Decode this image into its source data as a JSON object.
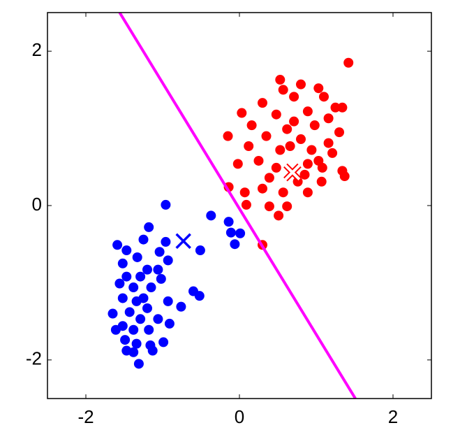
{
  "chart_data": {
    "type": "scatter",
    "xlim": [
      -2.5,
      2.5
    ],
    "ylim": [
      -2.5,
      2.5
    ],
    "xticks": [
      -2,
      0,
      2
    ],
    "yticks": [
      -2,
      0,
      2
    ],
    "series": [
      {
        "color": "#0000ff",
        "marker": "dot",
        "x": [
          -0.96,
          -1.18,
          -0.37,
          -0.14,
          -0.11,
          0.01,
          -0.06,
          -0.51,
          -1.25,
          -0.96,
          -1.59,
          -1.47,
          -1.33,
          -1.04,
          -0.93,
          -1.52,
          -1.2,
          -1.06,
          -1.47,
          -1.29,
          -1.02,
          -1.56,
          -1.38,
          -1.15,
          -0.6,
          -0.52,
          -0.93,
          -1.52,
          -1.34,
          -1.2,
          -0.76,
          -1.65,
          -1.43,
          -1.29,
          -1.06,
          -0.91,
          -1.52,
          -1.38,
          -1.18,
          -1.49,
          -1.34,
          -1.16,
          -0.99,
          -1.47,
          -1.38,
          -1.31,
          -1.13,
          -1.61,
          -1.25
        ],
        "y": [
          0.01,
          -0.28,
          -0.13,
          -0.21,
          -0.35,
          -0.36,
          -0.5,
          -0.58,
          -0.44,
          -0.47,
          -0.51,
          -0.58,
          -0.67,
          -0.6,
          -0.71,
          -0.75,
          -0.83,
          -0.83,
          -0.92,
          -0.92,
          -0.95,
          -1.01,
          -1.06,
          -1.06,
          -1.11,
          -1.17,
          -1.24,
          -1.2,
          -1.24,
          -1.33,
          -1.31,
          -1.4,
          -1.38,
          -1.47,
          -1.47,
          -1.53,
          -1.56,
          -1.61,
          -1.61,
          -1.74,
          -1.79,
          -1.81,
          -1.77,
          -1.88,
          -1.9,
          -2.05,
          -1.88,
          -1.61,
          -1.2
        ]
      },
      {
        "color": "#ff0000",
        "marker": "dot",
        "x": [
          1.42,
          0.53,
          0.8,
          0.57,
          1.03,
          1.1,
          1.25,
          1.34,
          0.3,
          0.71,
          0.03,
          0.48,
          0.89,
          1.16,
          0.16,
          0.62,
          0.98,
          1.3,
          -0.15,
          0.35,
          0.8,
          1.16,
          0.12,
          0.53,
          0.94,
          1.21,
          -0.02,
          0.25,
          0.48,
          0.89,
          1.08,
          1.34,
          0.39,
          0.76,
          1.07,
          1.37,
          -0.14,
          0.07,
          0.3,
          0.57,
          0.89,
          0.09,
          0.39,
          0.62,
          0.51,
          0.3,
          0.66,
          1.03,
          0.71,
          0.85
        ],
        "y": [
          1.85,
          1.63,
          1.57,
          1.5,
          1.52,
          1.41,
          1.27,
          1.27,
          1.33,
          1.41,
          1.2,
          1.18,
          1.22,
          1.13,
          1.04,
          0.99,
          1.04,
          0.95,
          0.9,
          0.9,
          0.86,
          0.81,
          0.77,
          0.72,
          0.72,
          0.68,
          0.54,
          0.58,
          0.49,
          0.54,
          0.49,
          0.45,
          0.36,
          0.31,
          0.31,
          0.38,
          0.24,
          0.17,
          0.22,
          0.17,
          0.17,
          0.01,
          -0.01,
          -0.01,
          -0.13,
          -0.51,
          0.77,
          0.58,
          1.09,
          0.4
        ]
      },
      {
        "color": "#0000ff",
        "marker": "x",
        "x": [
          -0.73
        ],
        "y": [
          -0.46
        ]
      },
      {
        "color": "#ffffff",
        "edgecolor": "#ff0000",
        "marker": "x",
        "x": [
          0.69
        ],
        "y": [
          0.43
        ]
      },
      {
        "color": "#ff00ff",
        "marker": "line",
        "x": [
          -1.56,
          1.51
        ],
        "y": [
          2.5,
          -2.5
        ]
      }
    ]
  }
}
